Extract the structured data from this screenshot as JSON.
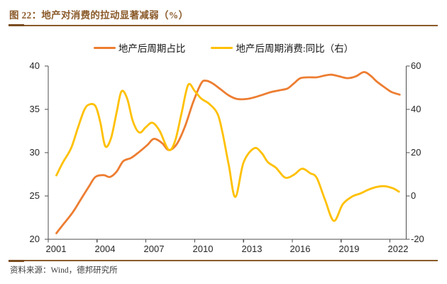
{
  "header": {
    "title": "图 22：地产对消费的拉动显著减弱（%）"
  },
  "legend": [
    {
      "label": "地产后周期占比"
    },
    {
      "label": "地产后周期消费:同比（右）"
    }
  ],
  "footer": {
    "source": "资料来源：Wind，德邦研究所"
  },
  "colors": {
    "brand_brown": "#8a5a2a",
    "axis_line": "#4d4d4d",
    "orange_series": "#ED7D31",
    "yellow_series": "#FFC000"
  },
  "chart_data": {
    "type": "line",
    "title": "地产对消费的拉动显著减弱（%）",
    "grid": false,
    "legend_position": "top",
    "x_axis": {
      "range": [
        2001,
        2022
      ],
      "tick_labels": [
        "2001",
        "2004",
        "2007",
        "2010",
        "2013",
        "2016",
        "2019",
        "2022"
      ]
    },
    "left_axis": {
      "range": [
        20,
        40
      ],
      "tick_labels": [
        "40",
        "35",
        "30",
        "25",
        "20"
      ],
      "series": "地产后周期占比"
    },
    "right_axis": {
      "range": [
        -20,
        60
      ],
      "tick_labels": [
        "60",
        "40",
        "20",
        "0",
        "-20"
      ],
      "series": "地产后周期消费:同比（右）"
    },
    "series": [
      {
        "name": "地产后周期占比",
        "axis": "left",
        "color": "#ED7D31",
        "points": [
          [
            2001.0,
            20.7
          ],
          [
            2001.5,
            21.9
          ],
          [
            2002.0,
            23.1
          ],
          [
            2002.5,
            24.6
          ],
          [
            2003.0,
            26.1
          ],
          [
            2003.4,
            27.2
          ],
          [
            2003.9,
            27.4
          ],
          [
            2004.3,
            27.2
          ],
          [
            2004.7,
            27.8
          ],
          [
            2005.1,
            29.0
          ],
          [
            2005.6,
            29.4
          ],
          [
            2006.1,
            30.1
          ],
          [
            2006.6,
            30.9
          ],
          [
            2007.0,
            31.6
          ],
          [
            2007.5,
            31.1
          ],
          [
            2007.9,
            30.3
          ],
          [
            2008.4,
            31.0
          ],
          [
            2008.9,
            33.0
          ],
          [
            2009.4,
            35.8
          ],
          [
            2009.9,
            38.0
          ],
          [
            2010.2,
            38.3
          ],
          [
            2010.6,
            38.0
          ],
          [
            2011.1,
            37.3
          ],
          [
            2011.6,
            36.6
          ],
          [
            2012.1,
            36.2
          ],
          [
            2012.7,
            36.2
          ],
          [
            2013.2,
            36.4
          ],
          [
            2013.7,
            36.7
          ],
          [
            2014.2,
            37.0
          ],
          [
            2014.7,
            37.2
          ],
          [
            2015.2,
            37.4
          ],
          [
            2015.6,
            38.0
          ],
          [
            2016.0,
            38.6
          ],
          [
            2016.5,
            38.7
          ],
          [
            2017.0,
            38.7
          ],
          [
            2017.5,
            38.9
          ],
          [
            2017.9,
            39.0
          ],
          [
            2018.4,
            38.8
          ],
          [
            2018.9,
            38.6
          ],
          [
            2019.4,
            38.8
          ],
          [
            2019.9,
            39.3
          ],
          [
            2020.3,
            38.9
          ],
          [
            2020.7,
            38.2
          ],
          [
            2021.2,
            37.5
          ],
          [
            2021.6,
            37.0
          ],
          [
            2022.1,
            36.7
          ]
        ]
      },
      {
        "name": "地产后周期消费:同比（右）",
        "axis": "right",
        "color": "#FFC000",
        "points": [
          [
            2001.0,
            9.5
          ],
          [
            2001.4,
            15.5
          ],
          [
            2001.9,
            22.0
          ],
          [
            2002.3,
            31.0
          ],
          [
            2002.7,
            39.5
          ],
          [
            2003.0,
            42.2
          ],
          [
            2003.4,
            41.5
          ],
          [
            2003.7,
            34.0
          ],
          [
            2004.0,
            23.0
          ],
          [
            2004.35,
            26.5
          ],
          [
            2004.7,
            38.5
          ],
          [
            2005.0,
            48.3
          ],
          [
            2005.35,
            45.0
          ],
          [
            2005.7,
            34.5
          ],
          [
            2006.1,
            29.3
          ],
          [
            2006.5,
            31.8
          ],
          [
            2006.9,
            33.8
          ],
          [
            2007.35,
            30.0
          ],
          [
            2007.9,
            21.3
          ],
          [
            2008.3,
            25.5
          ],
          [
            2008.7,
            38.5
          ],
          [
            2009.1,
            51.3
          ],
          [
            2009.5,
            48.5
          ],
          [
            2009.9,
            45.0
          ],
          [
            2010.4,
            42.5
          ],
          [
            2010.9,
            38.0
          ],
          [
            2011.2,
            29.5
          ],
          [
            2011.6,
            14.0
          ],
          [
            2012.0,
            -0.5
          ],
          [
            2012.5,
            15.4
          ],
          [
            2013.15,
            22.0
          ],
          [
            2013.6,
            20.0
          ],
          [
            2014.0,
            15.6
          ],
          [
            2014.5,
            13.0
          ],
          [
            2015.05,
            8.5
          ],
          [
            2015.6,
            9.8
          ],
          [
            2016.1,
            12.6
          ],
          [
            2016.6,
            10.5
          ],
          [
            2017.0,
            8.4
          ],
          [
            2017.5,
            -1.5
          ],
          [
            2018.05,
            -11.5
          ],
          [
            2018.6,
            -3.8
          ],
          [
            2019.2,
            -0.2
          ],
          [
            2019.7,
            1.2
          ],
          [
            2020.2,
            3.0
          ],
          [
            2020.7,
            4.2
          ],
          [
            2021.2,
            4.5
          ],
          [
            2021.7,
            3.5
          ],
          [
            2022.05,
            2.0
          ]
        ]
      }
    ]
  }
}
